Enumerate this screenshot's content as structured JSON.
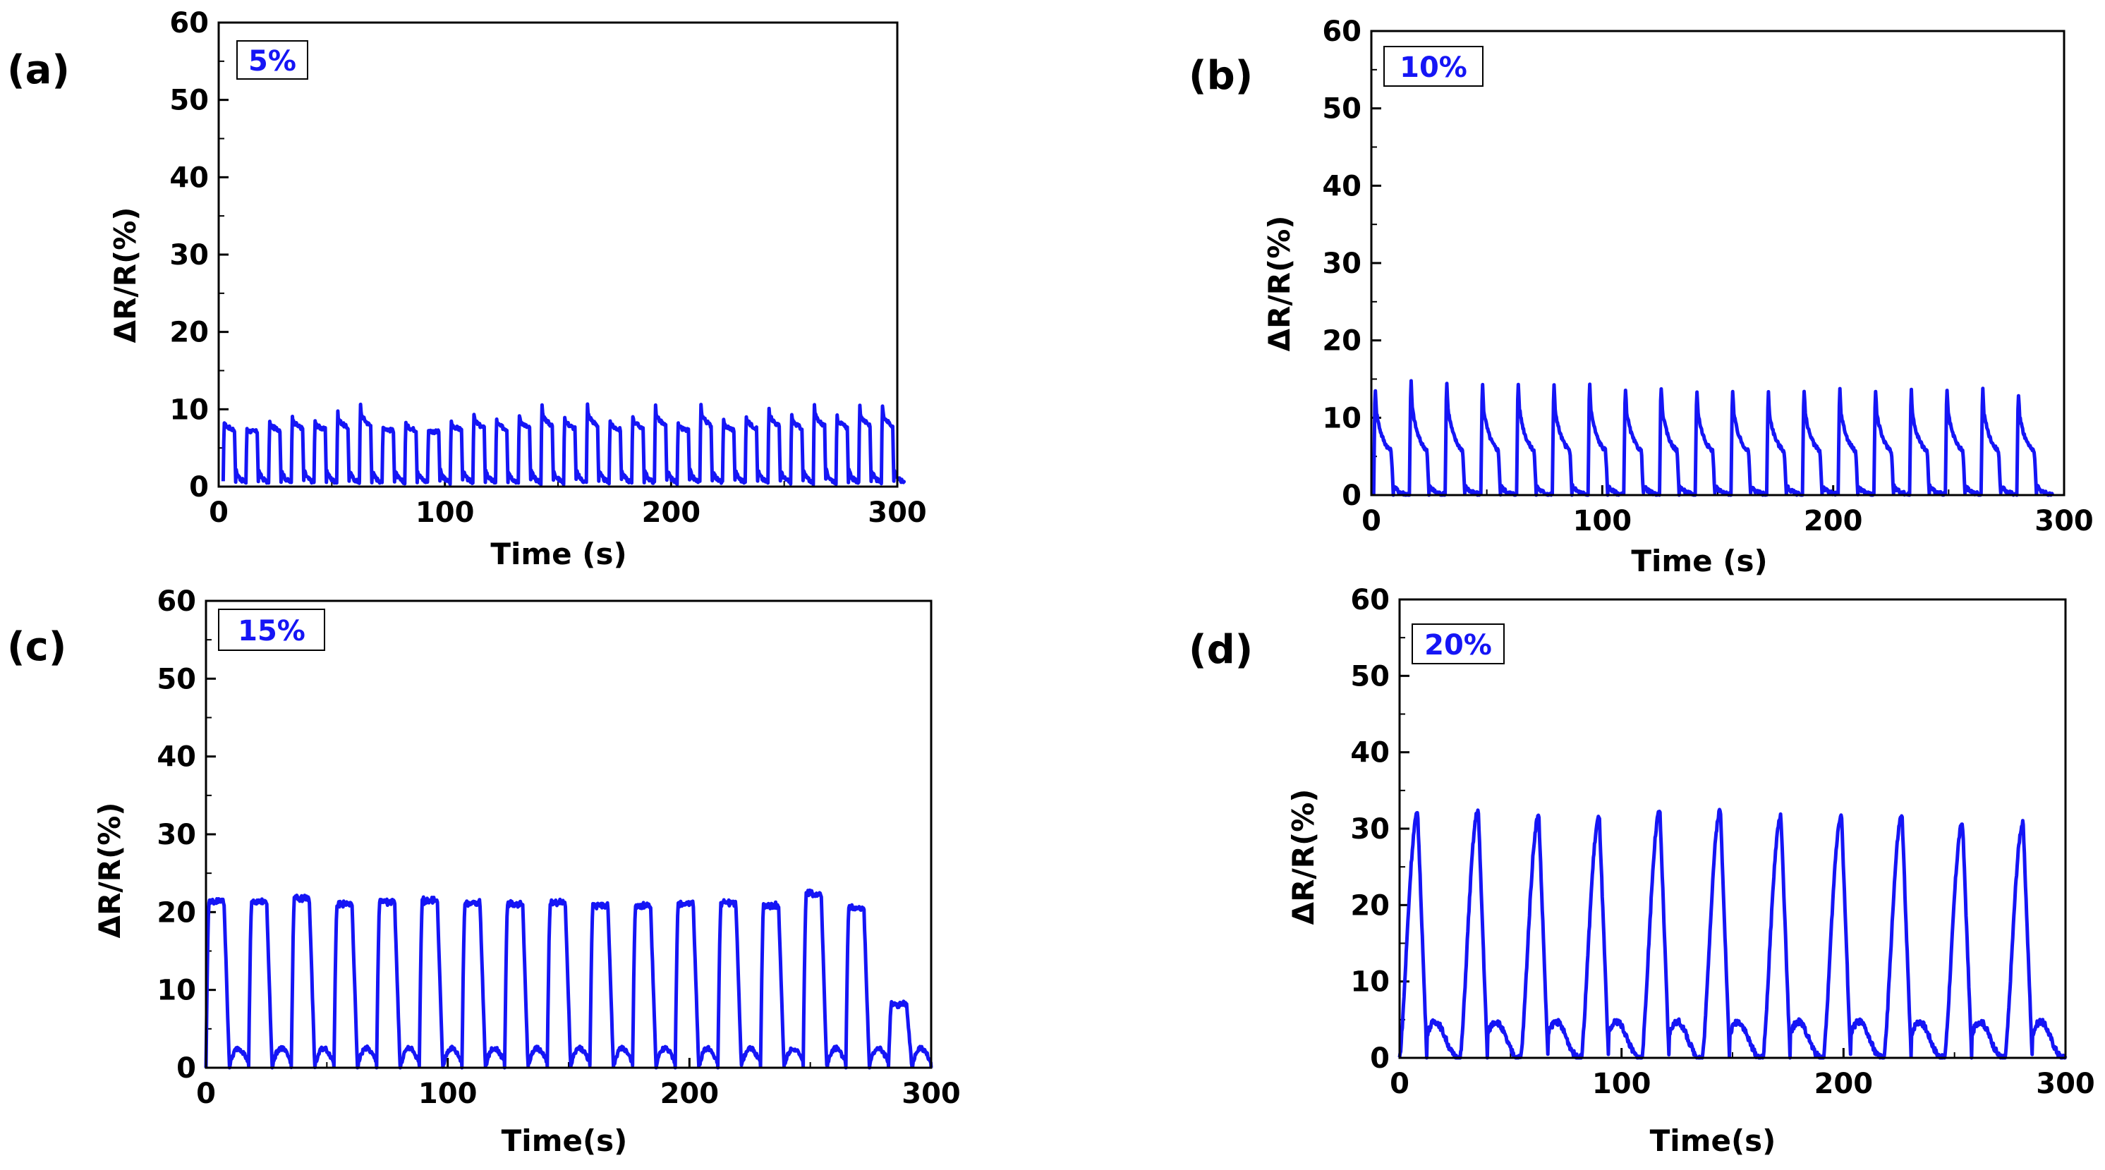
{
  "figure": {
    "trace_color": "#1515f5",
    "axis_color": "#000000"
  },
  "chart_data": [
    {
      "type": "line",
      "panel_label": "(a)",
      "legend_text": "5%",
      "xlabel": "Time (s)",
      "ylabel": "ΔR/R(%)",
      "xlim": [
        0,
        300
      ],
      "ylim": [
        0,
        60
      ],
      "xticks": [
        0,
        100,
        200,
        300
      ],
      "yticks": [
        0,
        10,
        20,
        30,
        40,
        50,
        60
      ],
      "signal": {
        "t_start": 2,
        "t_end": 303,
        "cycles": 30,
        "baseline": 0.5,
        "mid_level": 7,
        "peak_values": [
          8.6,
          7.4,
          8.5,
          9.4,
          8.7,
          9.8,
          10.9,
          8.0,
          8.4,
          7.3,
          8.6,
          9.6,
          8.9,
          9.6,
          10.8,
          9.4,
          10.9,
          8.6,
          9.5,
          10.8,
          8.1,
          10.9,
          8.6,
          9.5,
          10.7,
          9.5,
          10.8,
          9.7,
          10.8,
          10.8
        ],
        "shape": "square",
        "relax": 2.4
      }
    },
    {
      "type": "line",
      "panel_label": "(b)",
      "legend_text": "10%",
      "xlabel": "Time (s)",
      "ylabel": "ΔR/R(%)",
      "xlim": [
        0,
        300
      ],
      "ylim": [
        0,
        60
      ],
      "xticks": [
        0,
        100,
        200,
        300
      ],
      "yticks": [
        0,
        10,
        20,
        30,
        40,
        50,
        60
      ],
      "signal": {
        "t_start": 1,
        "t_end": 295,
        "cycles": 19,
        "baseline": 0,
        "mid_level": 5,
        "peak_values": [
          14.5,
          15.5,
          15.3,
          15.0,
          15.3,
          15.0,
          15.1,
          14.6,
          14.8,
          14.3,
          14.2,
          14.0,
          14.2,
          14.4,
          14.3,
          14.2,
          14.3,
          14.4,
          13.8
        ],
        "shape": "square",
        "relax": 5
      }
    },
    {
      "type": "line",
      "panel_label": "(c)",
      "legend_text": "15%",
      "xlabel": "Time(s)",
      "ylabel": "ΔR/R(%)",
      "xlim": [
        0,
        300
      ],
      "ylim": [
        0,
        60
      ],
      "xticks": [
        0,
        100,
        200,
        300
      ],
      "yticks": [
        0,
        10,
        20,
        30,
        40,
        50,
        60
      ],
      "signal": {
        "t_start": 0,
        "t_end": 300,
        "cycles": 17,
        "baseline": 0,
        "mid_level": 4,
        "peak_values": [
          21.8,
          21.7,
          22.2,
          21.4,
          21.7,
          21.9,
          21.6,
          21.5,
          21.6,
          21.3,
          21.2,
          21.5,
          21.5,
          21.3,
          22.8,
          21.0,
          8.5
        ],
        "shape": "round",
        "relax": 6
      }
    },
    {
      "type": "line",
      "panel_label": "(d)",
      "legend_text": "20%",
      "xlabel": "Time(s)",
      "ylabel": "ΔR/R(%)",
      "xlim": [
        0,
        300
      ],
      "ylim": [
        0,
        60
      ],
      "xticks": [
        0,
        100,
        200,
        300
      ],
      "yticks": [
        0,
        10,
        20,
        30,
        40,
        50,
        60
      ],
      "signal": {
        "t_start": 0,
        "t_end": 300,
        "cycles": 11,
        "baseline": 0,
        "mid_level": 6,
        "peak_values": [
          32.0,
          32.4,
          31.7,
          31.5,
          32.3,
          32.4,
          31.6,
          31.8,
          31.7,
          30.7,
          30.7
        ],
        "shape": "spike",
        "relax": 9
      }
    }
  ]
}
